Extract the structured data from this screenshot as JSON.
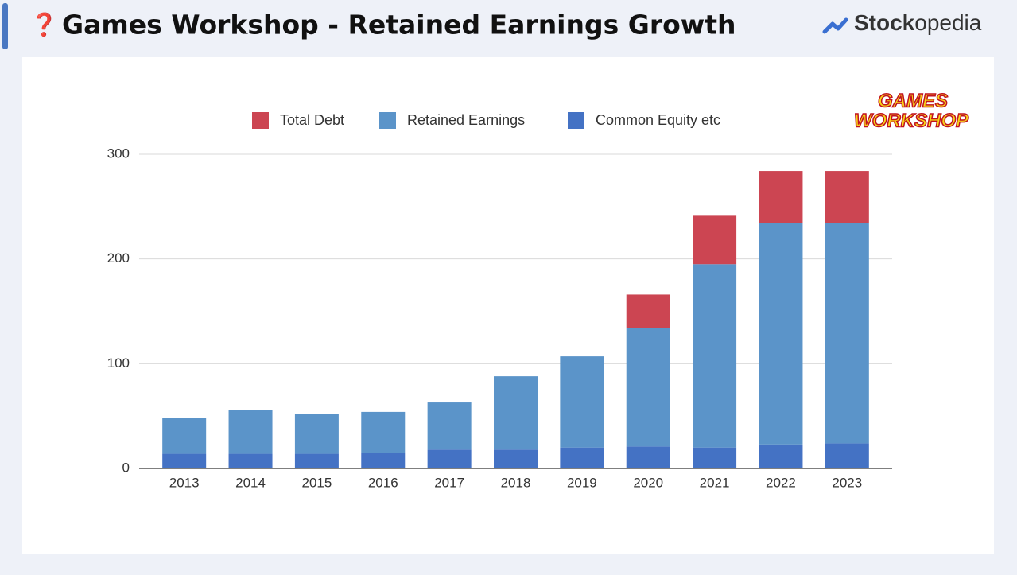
{
  "header": {
    "icon": "❓",
    "title": "Games Workshop - Retained Earnings Growth",
    "brand": [
      "Stock",
      "opedia"
    ]
  },
  "chart_data": {
    "type": "bar",
    "stacked": true,
    "logo": [
      "GAMES",
      "WORKSHOP"
    ],
    "categories": [
      "2013",
      "2014",
      "2015",
      "2016",
      "2017",
      "2018",
      "2019",
      "2020",
      "2021",
      "2022",
      "2023"
    ],
    "series": [
      {
        "name": "Total Debt",
        "color": "#cc4552",
        "values": [
          0,
          0,
          0,
          0,
          0,
          0,
          0,
          32,
          47,
          50,
          50
        ]
      },
      {
        "name": "Retained Earnings",
        "color": "#5b94c9",
        "values": [
          34,
          42,
          38,
          39,
          45,
          70,
          87,
          113,
          175,
          211,
          210
        ]
      },
      {
        "name": "Common Equity etc",
        "color": "#4472c4",
        "values": [
          14,
          14,
          14,
          15,
          18,
          18,
          20,
          21,
          20,
          23,
          24
        ]
      }
    ],
    "ylim": [
      0,
      300
    ],
    "yticks": [
      0,
      100,
      200,
      300
    ],
    "grid": true,
    "legend": "top"
  }
}
